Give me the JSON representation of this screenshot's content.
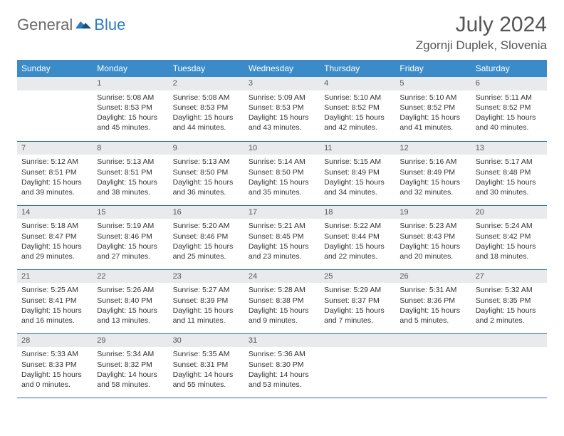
{
  "logo": {
    "general": "General",
    "blue": "Blue"
  },
  "title": "July 2024",
  "location": "Zgornji Duplek, Slovenia",
  "colors": {
    "header_bg": "#3b8bc9",
    "daynum_bg": "#e9eaec",
    "row_border": "#2d6fa8",
    "text": "#333333",
    "title_text": "#555555"
  },
  "day_headers": [
    "Sunday",
    "Monday",
    "Tuesday",
    "Wednesday",
    "Thursday",
    "Friday",
    "Saturday"
  ],
  "start_offset": 1,
  "days": [
    {
      "n": 1,
      "sunrise": "5:08 AM",
      "sunset": "8:53 PM",
      "daylight": "15 hours and 45 minutes."
    },
    {
      "n": 2,
      "sunrise": "5:08 AM",
      "sunset": "8:53 PM",
      "daylight": "15 hours and 44 minutes."
    },
    {
      "n": 3,
      "sunrise": "5:09 AM",
      "sunset": "8:53 PM",
      "daylight": "15 hours and 43 minutes."
    },
    {
      "n": 4,
      "sunrise": "5:10 AM",
      "sunset": "8:52 PM",
      "daylight": "15 hours and 42 minutes."
    },
    {
      "n": 5,
      "sunrise": "5:10 AM",
      "sunset": "8:52 PM",
      "daylight": "15 hours and 41 minutes."
    },
    {
      "n": 6,
      "sunrise": "5:11 AM",
      "sunset": "8:52 PM",
      "daylight": "15 hours and 40 minutes."
    },
    {
      "n": 7,
      "sunrise": "5:12 AM",
      "sunset": "8:51 PM",
      "daylight": "15 hours and 39 minutes."
    },
    {
      "n": 8,
      "sunrise": "5:13 AM",
      "sunset": "8:51 PM",
      "daylight": "15 hours and 38 minutes."
    },
    {
      "n": 9,
      "sunrise": "5:13 AM",
      "sunset": "8:50 PM",
      "daylight": "15 hours and 36 minutes."
    },
    {
      "n": 10,
      "sunrise": "5:14 AM",
      "sunset": "8:50 PM",
      "daylight": "15 hours and 35 minutes."
    },
    {
      "n": 11,
      "sunrise": "5:15 AM",
      "sunset": "8:49 PM",
      "daylight": "15 hours and 34 minutes."
    },
    {
      "n": 12,
      "sunrise": "5:16 AM",
      "sunset": "8:49 PM",
      "daylight": "15 hours and 32 minutes."
    },
    {
      "n": 13,
      "sunrise": "5:17 AM",
      "sunset": "8:48 PM",
      "daylight": "15 hours and 30 minutes."
    },
    {
      "n": 14,
      "sunrise": "5:18 AM",
      "sunset": "8:47 PM",
      "daylight": "15 hours and 29 minutes."
    },
    {
      "n": 15,
      "sunrise": "5:19 AM",
      "sunset": "8:46 PM",
      "daylight": "15 hours and 27 minutes."
    },
    {
      "n": 16,
      "sunrise": "5:20 AM",
      "sunset": "8:46 PM",
      "daylight": "15 hours and 25 minutes."
    },
    {
      "n": 17,
      "sunrise": "5:21 AM",
      "sunset": "8:45 PM",
      "daylight": "15 hours and 23 minutes."
    },
    {
      "n": 18,
      "sunrise": "5:22 AM",
      "sunset": "8:44 PM",
      "daylight": "15 hours and 22 minutes."
    },
    {
      "n": 19,
      "sunrise": "5:23 AM",
      "sunset": "8:43 PM",
      "daylight": "15 hours and 20 minutes."
    },
    {
      "n": 20,
      "sunrise": "5:24 AM",
      "sunset": "8:42 PM",
      "daylight": "15 hours and 18 minutes."
    },
    {
      "n": 21,
      "sunrise": "5:25 AM",
      "sunset": "8:41 PM",
      "daylight": "15 hours and 16 minutes."
    },
    {
      "n": 22,
      "sunrise": "5:26 AM",
      "sunset": "8:40 PM",
      "daylight": "15 hours and 13 minutes."
    },
    {
      "n": 23,
      "sunrise": "5:27 AM",
      "sunset": "8:39 PM",
      "daylight": "15 hours and 11 minutes."
    },
    {
      "n": 24,
      "sunrise": "5:28 AM",
      "sunset": "8:38 PM",
      "daylight": "15 hours and 9 minutes."
    },
    {
      "n": 25,
      "sunrise": "5:29 AM",
      "sunset": "8:37 PM",
      "daylight": "15 hours and 7 minutes."
    },
    {
      "n": 26,
      "sunrise": "5:31 AM",
      "sunset": "8:36 PM",
      "daylight": "15 hours and 5 minutes."
    },
    {
      "n": 27,
      "sunrise": "5:32 AM",
      "sunset": "8:35 PM",
      "daylight": "15 hours and 2 minutes."
    },
    {
      "n": 28,
      "sunrise": "5:33 AM",
      "sunset": "8:33 PM",
      "daylight": "15 hours and 0 minutes."
    },
    {
      "n": 29,
      "sunrise": "5:34 AM",
      "sunset": "8:32 PM",
      "daylight": "14 hours and 58 minutes."
    },
    {
      "n": 30,
      "sunrise": "5:35 AM",
      "sunset": "8:31 PM",
      "daylight": "14 hours and 55 minutes."
    },
    {
      "n": 31,
      "sunrise": "5:36 AM",
      "sunset": "8:30 PM",
      "daylight": "14 hours and 53 minutes."
    }
  ],
  "labels": {
    "sunrise": "Sunrise: ",
    "sunset": "Sunset: ",
    "daylight": "Daylight: "
  }
}
